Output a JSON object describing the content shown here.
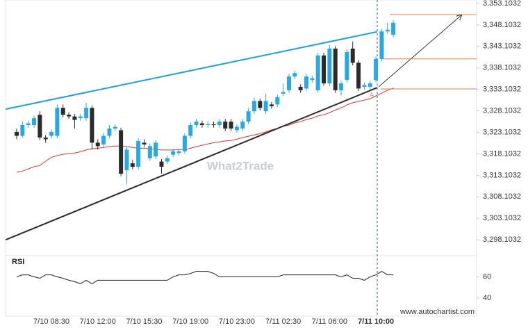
{
  "chart_data": {
    "type": "candlestick",
    "categories": [
      null,
      null,
      null,
      null,
      null,
      null,
      "7/10 08:30",
      null,
      null,
      null,
      null,
      null,
      null,
      null,
      "7/10 12:00",
      null,
      null,
      null,
      null,
      null,
      null,
      null,
      "7/10 15:30",
      null,
      null,
      null,
      null,
      null,
      null,
      null,
      "7/10 19:00",
      null,
      null,
      null,
      null,
      null,
      null,
      null,
      "7/10 23:00",
      null,
      null,
      null,
      null,
      null,
      null,
      null,
      "7/11 02:30",
      null,
      null,
      null,
      null,
      null,
      null,
      null,
      "7/11 06:00",
      null,
      null,
      null,
      null,
      null,
      null,
      null,
      "7/11 10:00",
      null,
      null,
      null
    ],
    "open": [
      3323.2,
      3322.3,
      3324.8,
      3324.8,
      3327.2,
      3321.9,
      3322.3,
      3322.3,
      3328.8,
      3327.2,
      3326.8,
      3326.4,
      3326.4,
      3328.8,
      3320.7,
      3320.3,
      3322.3,
      3324.0,
      3323.6,
      3314.3,
      3315.9,
      3315.1,
      3320.7,
      3317.1,
      3317.5,
      3316.3,
      3316.3,
      3317.9,
      3318.3,
      3318.7,
      3322.3,
      3324.8,
      3325.2,
      3324.8,
      3325.0,
      3324.8,
      3325.6,
      3325.6,
      3323.6,
      3324.0,
      3325.6,
      3328.0,
      3330.4,
      3328.0,
      3329.6,
      3329.6,
      3332.1,
      3332.9,
      3336.1,
      3333.7,
      3333.3,
      3335.3,
      3332.9,
      3341.0,
      3334.5,
      3342.6,
      3332.9,
      3335.3,
      3342.6,
      3339.3,
      3333.7,
      3333.7,
      3335.3,
      3340.2,
      3346.6,
      3345.8
    ],
    "high": [
      3324.0,
      3325.6,
      3325.8,
      3327.0,
      3328.0,
      3322.5,
      3323.8,
      3329.6,
      3329.6,
      3327.8,
      3327.4,
      3327.4,
      3330.0,
      3329.4,
      3321.5,
      3323.0,
      3324.8,
      3325.0,
      3324.2,
      3319.9,
      3316.7,
      3321.7,
      3321.5,
      3320.5,
      3321.3,
      3316.9,
      3317.7,
      3319.3,
      3319.3,
      3322.9,
      3325.4,
      3326.2,
      3325.8,
      3325.6,
      3325.6,
      3326.2,
      3326.2,
      3326.2,
      3325.0,
      3326.2,
      3328.8,
      3331.2,
      3331.0,
      3332.1,
      3330.2,
      3331.9,
      3334.5,
      3336.7,
      3337.5,
      3334.3,
      3336.7,
      3336.3,
      3341.6,
      3341.6,
      3343.4,
      3343.2,
      3335.1,
      3342.4,
      3344.2,
      3339.9,
      3334.7,
      3335.1,
      3340.8,
      3347.2,
      3348.6,
      3349.2
    ],
    "low": [
      3321.5,
      3321.9,
      3324.2,
      3324.2,
      3321.3,
      3320.7,
      3321.7,
      3321.7,
      3326.6,
      3326.2,
      3324.0,
      3325.8,
      3325.8,
      3319.1,
      3319.1,
      3319.7,
      3321.7,
      3323.4,
      3312.9,
      3311.0,
      3314.5,
      3314.5,
      3319.7,
      3316.5,
      3316.9,
      3313.5,
      3315.7,
      3317.3,
      3317.7,
      3318.1,
      3321.7,
      3324.2,
      3324.2,
      3324.2,
      3324.2,
      3324.2,
      3323.4,
      3323.4,
      3323.0,
      3323.4,
      3325.0,
      3327.4,
      3328.2,
      3327.4,
      3328.6,
      3329.0,
      3331.5,
      3332.3,
      3335.5,
      3332.3,
      3332.7,
      3334.7,
      3332.3,
      3333.9,
      3333.9,
      3332.3,
      3331.7,
      3334.7,
      3338.7,
      3332.7,
      3333.1,
      3333.1,
      3334.7,
      3339.6,
      3346.0,
      3345.2
    ],
    "close": [
      3322.3,
      3324.8,
      3325.2,
      3326.4,
      3321.9,
      3321.5,
      3323.2,
      3328.8,
      3327.2,
      3326.8,
      3326.0,
      3326.8,
      3328.8,
      3320.7,
      3319.9,
      3322.3,
      3324.0,
      3324.4,
      3313.5,
      3319.1,
      3315.1,
      3321.1,
      3320.3,
      3319.9,
      3320.7,
      3315.1,
      3317.1,
      3318.7,
      3318.7,
      3322.3,
      3324.8,
      3325.6,
      3324.8,
      3325.0,
      3324.8,
      3325.6,
      3324.0,
      3324.0,
      3324.4,
      3325.6,
      3328.0,
      3330.4,
      3328.8,
      3330.4,
      3329.2,
      3331.3,
      3332.5,
      3336.1,
      3336.9,
      3332.9,
      3336.1,
      3335.7,
      3341.0,
      3334.5,
      3342.6,
      3332.9,
      3334.5,
      3341.8,
      3339.3,
      3333.3,
      3334.1,
      3334.5,
      3340.2,
      3346.6,
      3347.0,
      3348.6
    ],
    "up_color": "#29a9e0",
    "down_color": "#2b2b2b",
    "ylim": [
      3294.9,
      3353.9
    ],
    "yticks": [
      {
        "value": 3298.1032,
        "label": "3,298.1032"
      },
      {
        "value": 3303.1032,
        "label": "3,303.1032"
      },
      {
        "value": 3308.1032,
        "label": "3,308.1032"
      },
      {
        "value": 3313.1032,
        "label": "3,313.1032"
      },
      {
        "value": 3318.1032,
        "label": "3,318.1032"
      },
      {
        "value": 3323.1032,
        "label": "3,323.1032"
      },
      {
        "value": 3328.1032,
        "label": "3,328.1032"
      },
      {
        "value": 3333.1032,
        "label": "3,333.1032"
      },
      {
        "value": 3338.1032,
        "label": "3,338.1032"
      },
      {
        "value": 3343.1032,
        "label": "3,343.1032"
      },
      {
        "value": 3348.1032,
        "label": "3,348.1032"
      },
      {
        "value": 3353.1032,
        "label": "3,353.1032"
      }
    ],
    "moving_average": {
      "color": "#e8322d",
      "values": [
        3313.8,
        3314.1,
        3314.6,
        3315.1,
        3315.4,
        3316.4,
        3317.3,
        3317.7,
        3318.0,
        3318.2,
        3318.3,
        3318.6,
        3319.0,
        3319.3,
        3319.4,
        3319.6,
        3319.8,
        3319.9,
        3319.9,
        3319.8,
        3319.6,
        3319.4,
        3319.4,
        3319.3,
        3319.1,
        3319.0,
        3319.0,
        3319.0,
        3319.1,
        3319.1,
        3319.4,
        3319.8,
        3320.1,
        3320.4,
        3320.7,
        3320.9,
        3321.1,
        3321.2,
        3321.5,
        3321.9,
        3322.2,
        3322.5,
        3322.8,
        3323.2,
        3323.7,
        3324.0,
        3324.5,
        3324.8,
        3325.3,
        3325.6,
        3326.1,
        3326.4,
        3326.9,
        3327.2,
        3327.7,
        3328.3,
        3328.8,
        3329.5,
        3330.0,
        3330.3,
        3330.6,
        3330.9,
        3331.6,
        3332.2,
        3332.9,
        3333.4
      ]
    },
    "trendlines": [
      {
        "color": "#1ba1e2",
        "x": [
          -1.9,
          62.2
        ],
        "y": [
          3328.5,
          3346.5
        ]
      },
      {
        "color": "#2b2b2b",
        "x": [
          -1.9,
          62.2
        ],
        "y": [
          3298.1,
          3333.5
        ]
      }
    ],
    "levels": {
      "color": "#f07d3a",
      "values": [
        3350.5,
        3340.2,
        3333.2
      ]
    },
    "annotation": "A",
    "watermark": "What2Trade",
    "rsi": {
      "label": "RSI",
      "color": "#222",
      "ylim": [
        23,
        80
      ],
      "yticks": [
        40,
        60
      ],
      "values": [
        60.0,
        61.9,
        61.9,
        60.0,
        58.7,
        61.9,
        61.9,
        60.0,
        58.7,
        56.8,
        55.5,
        53.5,
        56.8,
        53.5,
        56.8,
        56.8,
        56.8,
        56.8,
        56.8,
        56.8,
        56.8,
        56.8,
        56.8,
        56.8,
        56.8,
        56.8,
        56.8,
        60.0,
        61.9,
        61.9,
        63.2,
        65.2,
        65.2,
        65.2,
        63.2,
        60.0,
        60.0,
        60.0,
        60.0,
        60.0,
        60.0,
        60.0,
        60.0,
        60.0,
        60.0,
        60.0,
        61.9,
        61.9,
        61.9,
        61.9,
        61.9,
        61.9,
        61.9,
        61.9,
        61.9,
        61.9,
        60.0,
        61.9,
        58.7,
        58.7,
        56.8,
        60.0,
        61.9,
        65.2,
        61.9,
        61.9
      ]
    },
    "source": "www.autochartist.com"
  }
}
